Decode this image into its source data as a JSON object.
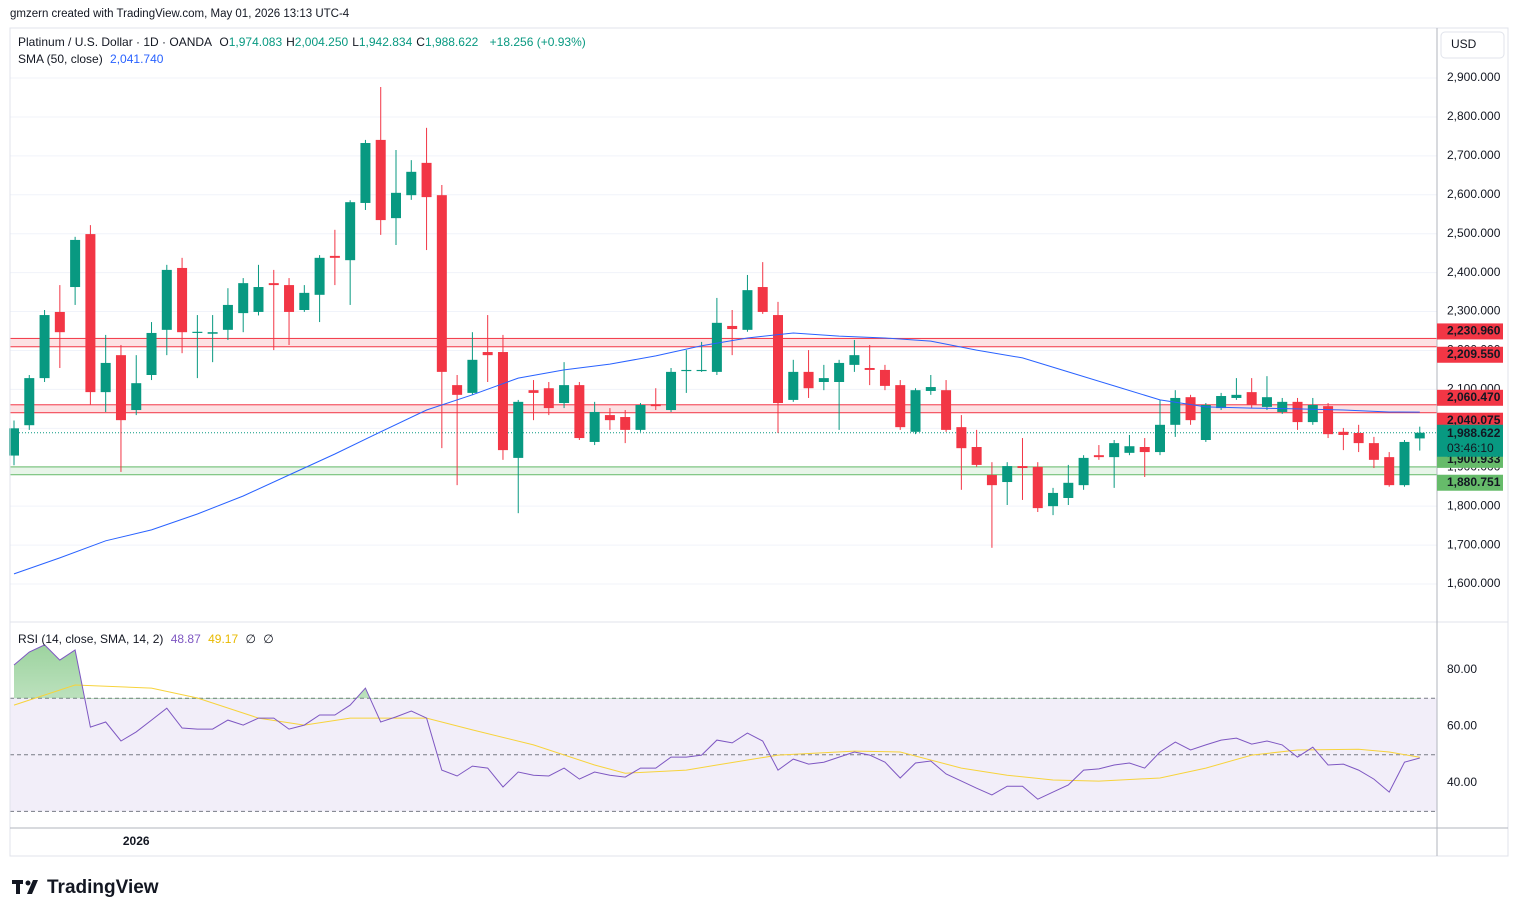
{
  "credit": "gmzern created with TradingView.com, May 01, 2026 13:13 UTC-4",
  "logo": "TradingView",
  "chart_data": {
    "type": "candlestick",
    "currency": "USD",
    "legend": {
      "symbol": "Platinum / U.S. Dollar · 1D · OANDA",
      "ohlc": [
        {
          "label": "O",
          "value": "1,974.083"
        },
        {
          "label": "H",
          "value": "2,004.250"
        },
        {
          "label": "L",
          "value": "1,942.834"
        },
        {
          "label": "C",
          "value": "1,988.622"
        }
      ],
      "change": "+18.256 (+0.93%)",
      "sma_label": "SMA (50, close)",
      "sma_value": "2,041.740",
      "rsi_label": "RSI (14, close, SMA, 14, 2)",
      "rsi_value": "48.87",
      "rsi_ma_value": "49.17",
      "rsi_extra": [
        "∅",
        "∅"
      ]
    },
    "up_color": "#089981",
    "down_color": "#f23645",
    "ylim": [
      1502.4,
      3028.5
    ],
    "yticks": [
      {
        "value": 1600,
        "label": "1,600.000"
      },
      {
        "value": 1700,
        "label": "1,700.000"
      },
      {
        "value": 1800,
        "label": "1,800.000"
      },
      {
        "value": 1900,
        "label": "1,900.000"
      },
      {
        "value": 2000,
        "label": "2,000.000"
      },
      {
        "value": 2100,
        "label": "2,100.000"
      },
      {
        "value": 2200,
        "label": "2,200.000"
      },
      {
        "value": 2300,
        "label": "2,300.000"
      },
      {
        "value": 2400,
        "label": "2,400.000"
      },
      {
        "value": 2500,
        "label": "2,500.000"
      },
      {
        "value": 2600,
        "label": "2,600.000"
      },
      {
        "value": 2700,
        "label": "2,700.000"
      },
      {
        "value": 2800,
        "label": "2,800.000"
      },
      {
        "value": 2900,
        "label": "2,900.000"
      }
    ],
    "grid": true,
    "x_labels": [
      {
        "index": 8,
        "label": "2026"
      }
    ],
    "candles": [
      [
        1930,
        2020,
        1905,
        2000
      ],
      [
        2008,
        2137,
        1996,
        2129
      ],
      [
        2129,
        2304,
        2119,
        2291
      ],
      [
        2299,
        2368,
        2155,
        2247
      ],
      [
        2363,
        2492,
        2317,
        2484
      ],
      [
        2499,
        2522,
        2060,
        2093
      ],
      [
        2093,
        2240,
        2042,
        2168
      ],
      [
        2188,
        2214,
        1888,
        2021
      ],
      [
        2047,
        2188,
        2034,
        2116
      ],
      [
        2137,
        2273,
        2124,
        2245
      ],
      [
        2253,
        2420,
        2188,
        2407
      ],
      [
        2412,
        2438,
        2193,
        2247
      ],
      [
        2245,
        2291,
        2129,
        2248
      ],
      [
        2243,
        2291,
        2170,
        2247
      ],
      [
        2253,
        2360,
        2227,
        2317
      ],
      [
        2296,
        2386,
        2247,
        2373
      ],
      [
        2299,
        2420,
        2290,
        2363
      ],
      [
        2373,
        2407,
        2201,
        2368
      ],
      [
        2368,
        2386,
        2214,
        2299
      ],
      [
        2304,
        2368,
        2299,
        2348
      ],
      [
        2343,
        2445,
        2273,
        2438
      ],
      [
        2443,
        2510,
        2368,
        2438
      ],
      [
        2432,
        2586,
        2317,
        2581
      ],
      [
        2579,
        2741,
        2561,
        2733
      ],
      [
        2741,
        2877,
        2497,
        2535
      ],
      [
        2540,
        2715,
        2471,
        2605
      ],
      [
        2599,
        2689,
        2587,
        2659
      ],
      [
        2682,
        2772,
        2458,
        2594
      ],
      [
        2599,
        2625,
        1949,
        2145
      ],
      [
        2111,
        2137,
        1854,
        2086
      ],
      [
        2091,
        2247,
        2086,
        2176
      ],
      [
        2196,
        2291,
        2119,
        2188
      ],
      [
        2196,
        2240,
        1919,
        1944
      ],
      [
        1924,
        2073,
        1782,
        2068
      ],
      [
        2098,
        2124,
        2021,
        2091
      ],
      [
        2103,
        2119,
        2034,
        2052
      ],
      [
        2065,
        2170,
        2052,
        2111
      ],
      [
        2111,
        2119,
        1970,
        1975
      ],
      [
        1965,
        2068,
        1957,
        2042
      ],
      [
        2034,
        2052,
        1996,
        2021
      ],
      [
        2029,
        2047,
        1962,
        1996
      ],
      [
        1996,
        2065,
        1991,
        2060
      ],
      [
        2062,
        2103,
        2047,
        2057
      ],
      [
        2047,
        2155,
        2042,
        2145
      ],
      [
        2147,
        2201,
        2091,
        2150
      ],
      [
        2147,
        2222,
        2145,
        2150
      ],
      [
        2145,
        2335,
        2137,
        2271
      ],
      [
        2263,
        2304,
        2188,
        2255
      ],
      [
        2253,
        2394,
        2248,
        2355
      ],
      [
        2363,
        2427,
        2294,
        2299
      ],
      [
        2291,
        2325,
        1988,
        2065
      ],
      [
        2073,
        2176,
        2068,
        2145
      ],
      [
        2145,
        2201,
        2078,
        2103
      ],
      [
        2119,
        2163,
        2098,
        2129
      ],
      [
        2119,
        2176,
        1996,
        2168
      ],
      [
        2163,
        2227,
        2145,
        2188
      ],
      [
        2155,
        2214,
        2111,
        2150
      ],
      [
        2150,
        2163,
        2098,
        2109
      ],
      [
        2111,
        2124,
        1996,
        2003
      ],
      [
        1991,
        2103,
        1985,
        2098
      ],
      [
        2096,
        2137,
        2086,
        2106
      ],
      [
        2098,
        2124,
        1991,
        1996
      ],
      [
        2003,
        2034,
        1842,
        1949
      ],
      [
        1952,
        1996,
        1901,
        1906
      ],
      [
        1880,
        1913,
        1693,
        1854
      ],
      [
        1862,
        1913,
        1803,
        1903
      ],
      [
        1903,
        1975,
        1816,
        1898
      ],
      [
        1901,
        1913,
        1785,
        1795
      ],
      [
        1800,
        1847,
        1777,
        1834
      ],
      [
        1821,
        1906,
        1803,
        1860
      ],
      [
        1854,
        1931,
        1842,
        1924
      ],
      [
        1931,
        1957,
        1919,
        1926
      ],
      [
        1926,
        1970,
        1847,
        1962
      ],
      [
        1937,
        1983,
        1931,
        1954
      ],
      [
        1952,
        1975,
        1875,
        1939
      ],
      [
        1939,
        2073,
        1931,
        2009
      ],
      [
        2009,
        2098,
        1978,
        2078
      ],
      [
        2080,
        2086,
        2009,
        2021
      ],
      [
        1970,
        2065,
        1965,
        2060
      ],
      [
        2052,
        2091,
        2047,
        2083
      ],
      [
        2078,
        2129,
        2073,
        2086
      ],
      [
        2093,
        2129,
        2052,
        2060
      ],
      [
        2055,
        2134,
        2047,
        2080
      ],
      [
        2042,
        2078,
        2037,
        2068
      ],
      [
        2068,
        2078,
        1996,
        2016
      ],
      [
        2016,
        2078,
        2009,
        2060
      ],
      [
        2057,
        2065,
        1975,
        1985
      ],
      [
        1991,
        2001,
        1944,
        1983
      ],
      [
        1988,
        2009,
        1939,
        1962
      ],
      [
        1962,
        1978,
        1898,
        1919
      ],
      [
        1926,
        1939,
        1850,
        1854
      ],
      [
        1854,
        1970,
        1850,
        1965
      ],
      [
        1974.083,
        2004.25,
        1942.834,
        1988.622
      ]
    ],
    "sma": {
      "color": "#2962ff",
      "x": [
        0,
        3,
        6,
        9,
        12,
        15,
        18,
        21,
        24,
        27,
        30,
        33,
        36,
        39,
        42,
        45,
        48,
        51,
        54,
        57,
        60,
        63,
        66,
        69,
        72,
        75,
        78,
        81,
        84,
        87,
        90,
        92
      ],
      "values": [
        1626,
        1667,
        1711,
        1739,
        1780,
        1826,
        1880,
        1934,
        1991,
        2047,
        2086,
        2129,
        2150,
        2165,
        2186,
        2212,
        2232,
        2245,
        2237,
        2232,
        2224,
        2201,
        2181,
        2145,
        2109,
        2073,
        2055,
        2052,
        2050,
        2047,
        2042,
        2041.74
      ]
    },
    "zones": [
      {
        "top": {
          "value": 2230.96,
          "label": "2,230.960"
        },
        "bottom": {
          "value": 2209.55,
          "label": "2,209.550"
        },
        "color": "#f23645",
        "label_color": "#ffffff"
      },
      {
        "top": {
          "value": 2060.47,
          "label": "2,060.470"
        },
        "bottom": {
          "value": 2040.075,
          "label": "2,040.075"
        },
        "color": "#f23645",
        "label_color": "#ffffff"
      },
      {
        "top": {
          "value": 1900.933,
          "label": "1,900.933"
        },
        "bottom": {
          "value": 1880.751,
          "label": "1,880.751"
        },
        "color": "#66bb6a",
        "label_color": "#131722"
      }
    ],
    "last_price": {
      "value": 1988.622,
      "label": "1,988.622"
    },
    "countdown": "03:46:10",
    "rsi": {
      "ylim": [
        24.1,
        97.0
      ],
      "yticks": [
        {
          "value": 40,
          "label": "40.00"
        },
        {
          "value": 60,
          "label": "60.00"
        },
        {
          "value": 80,
          "label": "80.00"
        }
      ],
      "levels": [
        70,
        50,
        30
      ],
      "color": "#7e57c2",
      "ma_color": "#f7d33c",
      "values": [
        81.8,
        86.4,
        88.9,
        83.5,
        87.1,
        59.8,
        61.6,
        54.9,
        58.1,
        62.3,
        66.5,
        59.5,
        59.1,
        59.1,
        62.3,
        60.5,
        63.0,
        63.0,
        59.1,
        60.5,
        64.1,
        64.1,
        67.6,
        73.6,
        61.6,
        63.4,
        65.5,
        63.0,
        44.6,
        42.5,
        46.0,
        45.3,
        38.6,
        43.9,
        42.8,
        42.5,
        45.3,
        41.4,
        43.9,
        42.8,
        42.1,
        45.3,
        45.3,
        49.2,
        49.2,
        49.9,
        55.2,
        54.2,
        57.7,
        54.9,
        44.6,
        48.5,
        46.7,
        47.4,
        49.2,
        51.0,
        49.9,
        47.4,
        41.8,
        47.1,
        47.8,
        43.2,
        40.7,
        38.2,
        35.8,
        38.9,
        38.9,
        34.3,
        36.8,
        39.3,
        44.6,
        45.0,
        46.4,
        47.1,
        45.3,
        51.0,
        54.5,
        51.7,
        53.5,
        55.2,
        55.9,
        53.8,
        54.9,
        53.5,
        49.2,
        52.7,
        46.4,
        46.7,
        44.6,
        41.4,
        36.8,
        47.4,
        48.87
      ],
      "ma_x": [
        0,
        4,
        9,
        12,
        16,
        19,
        22,
        27,
        30,
        34,
        38,
        40,
        44,
        46,
        50,
        55,
        58,
        62,
        65,
        68,
        71,
        75,
        78,
        81,
        84,
        88,
        90,
        92
      ],
      "ma_values": [
        67.6,
        74.7,
        73.6,
        70.1,
        63.0,
        60.5,
        63.0,
        63.0,
        58.8,
        53.5,
        46.4,
        43.5,
        44.6,
        46.4,
        49.9,
        51.3,
        51.0,
        45.3,
        42.8,
        41.1,
        40.7,
        41.8,
        45.3,
        49.9,
        51.7,
        52.0,
        51.0,
        49.17
      ]
    }
  }
}
